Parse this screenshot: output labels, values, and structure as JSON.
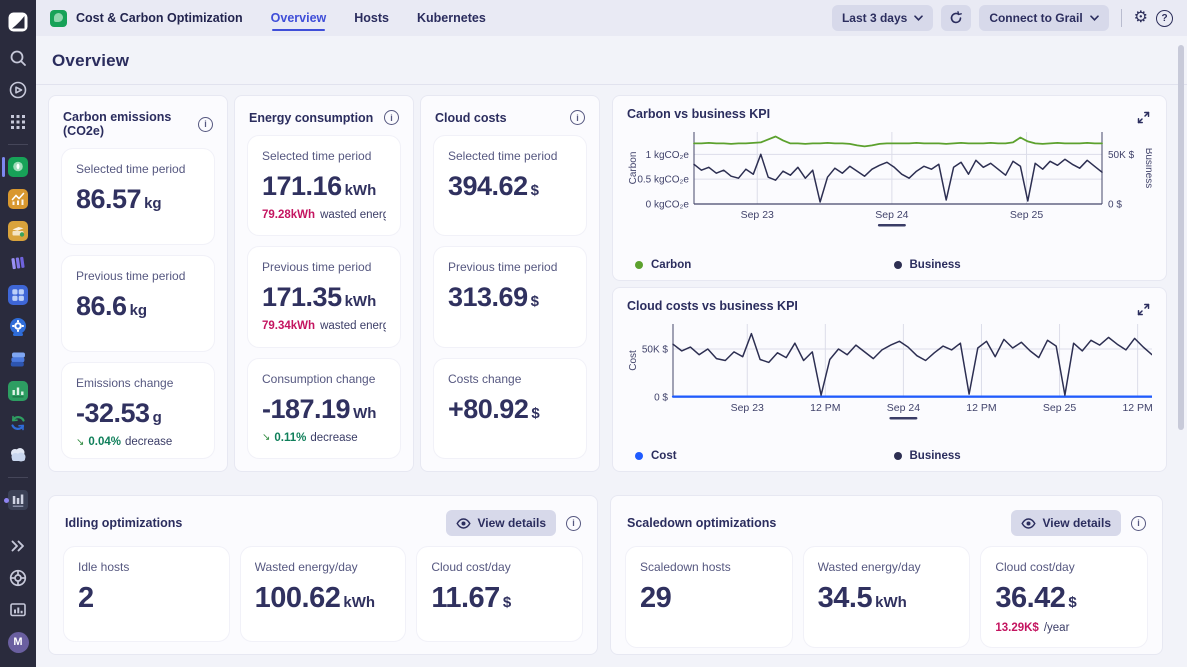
{
  "icons": {
    "info_glyph": "i",
    "help_glyph": "?",
    "gear_glyph": "⚙"
  },
  "colors": {
    "accent_blue": "#3f4ed8",
    "carbon_green": "#5ca12e",
    "cost_blue": "#1f5bff",
    "business_navy": "#2d2f52",
    "alert_red": "#c41560",
    "trend_green": "#0f7f5a"
  },
  "sidebar": {
    "avatar_label": "M",
    "icon_names": [
      "dynatrace-logo",
      "search",
      "launchpad",
      "apps-grid",
      "carbon-app",
      "dashboards-app",
      "automation-app",
      "cloud-layers-app",
      "kubernetes-app",
      "gear-app",
      "stack-app",
      "metrics-app",
      "sync-app",
      "clouds-app",
      "host-monitoring-app",
      "collapse-chevrons",
      "help-lifebuoy",
      "usage-chart",
      "user-avatar"
    ]
  },
  "topbar": {
    "app_title": "Cost & Carbon Optimization",
    "tabs": [
      {
        "label": "Overview",
        "active": true
      },
      {
        "label": "Hosts",
        "active": false
      },
      {
        "label": "Kubernetes",
        "active": false
      }
    ],
    "time_range_label": "Last 3 days",
    "connect_label": "Connect to Grail"
  },
  "page": {
    "title": "Overview"
  },
  "metric_columns": [
    {
      "title": "Carbon emissions (CO2e)",
      "tiles": [
        {
          "label": "Selected time period",
          "value": "86.57",
          "unit": "kg"
        },
        {
          "label": "Previous time period",
          "value": "86.6",
          "unit": "kg"
        },
        {
          "label": "Emissions change",
          "value": "-32.53",
          "unit": "g",
          "trend_glyph": "↘",
          "trend_value": "0.04%",
          "trend_text": "decrease"
        }
      ]
    },
    {
      "title": "Energy consumption",
      "tiles": [
        {
          "label": "Selected time period",
          "value": "171.16",
          "unit": "kWh",
          "sub_value": "79.28kWh",
          "sub_text": "wasted energy"
        },
        {
          "label": "Previous time period",
          "value": "171.35",
          "unit": "kWh",
          "sub_value": "79.34kWh",
          "sub_text": "wasted energy"
        },
        {
          "label": "Consumption change",
          "value": "-187.19",
          "unit": "Wh",
          "trend_glyph": "↘",
          "trend_value": "0.11%",
          "trend_text": "decrease"
        }
      ]
    },
    {
      "title": "Cloud costs",
      "tiles": [
        {
          "label": "Selected time period",
          "value": "394.62",
          "unit": "$"
        },
        {
          "label": "Previous time period",
          "value": "313.69",
          "unit": "$"
        },
        {
          "label": "Costs change",
          "value": "+80.92",
          "unit": "$"
        }
      ]
    }
  ],
  "optimizations": [
    {
      "title": "Idling optimizations",
      "view_details_label": "View details",
      "tiles": [
        {
          "label": "Idle hosts",
          "value": "2",
          "unit": ""
        },
        {
          "label": "Wasted energy/day",
          "value": "100.62",
          "unit": "kWh"
        },
        {
          "label": "Cloud cost/day",
          "value": "11.67",
          "unit": "$"
        }
      ]
    },
    {
      "title": "Scaledown optimizations",
      "view_details_label": "View details",
      "tiles": [
        {
          "label": "Scaledown hosts",
          "value": "29",
          "unit": ""
        },
        {
          "label": "Wasted energy/day",
          "value": "34.5",
          "unit": "kWh"
        },
        {
          "label": "Cloud cost/day",
          "value": "36.42",
          "unit": "$",
          "sub_value": "13.29K$",
          "sub_text": "/year"
        }
      ]
    }
  ],
  "chart_data": [
    {
      "type": "line",
      "title": "Carbon vs business KPI",
      "ylabel_left": "Carbon",
      "ylabel_right": "Business",
      "ylim_left": [
        0,
        1.45
      ],
      "ylim_right": [
        0,
        72.5
      ],
      "yticks_left": [
        {
          "value": 0,
          "label": "0 kgCO₂e"
        },
        {
          "value": 0.5,
          "label": "0.5 kgCO₂e"
        },
        {
          "value": 1,
          "label": "1 kgCO₂e"
        }
      ],
      "yticks_right": [
        {
          "value": 0,
          "label": "0 $"
        },
        {
          "value": 50,
          "label": "50K $"
        }
      ],
      "xticks": [
        {
          "pos": 0.155,
          "label": "Sep 23"
        },
        {
          "pos": 0.485,
          "label": "Sep 24",
          "selected": true
        },
        {
          "pos": 0.815,
          "label": "Sep 25"
        }
      ],
      "series": [
        {
          "name": "Carbon",
          "color": "#5ca12e",
          "axis": "left",
          "width": 1.8,
          "values": [
            1.22,
            1.22,
            1.23,
            1.22,
            1.22,
            1.21,
            1.22,
            1.22,
            1.23,
            1.24,
            1.3,
            1.36,
            1.28,
            1.22,
            1.22,
            1.21,
            1.22,
            1.22,
            1.23,
            1.22,
            1.22,
            1.21,
            1.18,
            1.16,
            1.18,
            1.21,
            1.22,
            1.22,
            1.22,
            1.22,
            1.23,
            1.22,
            1.22,
            1.22,
            1.21,
            1.22,
            1.23,
            1.22,
            1.22,
            1.22,
            1.23,
            1.22,
            1.22,
            1.24,
            1.34,
            1.26,
            1.22,
            1.21,
            1.22,
            1.23,
            1.22,
            1.22,
            1.22,
            1.23,
            1.22,
            1.22
          ]
        },
        {
          "name": "Business",
          "color": "#2d2f52",
          "axis": "right",
          "width": 1.5,
          "values": [
            40,
            34,
            37,
            31,
            34,
            28,
            26,
            35,
            30,
            50,
            27,
            24,
            33,
            29,
            37,
            26,
            34,
            2,
            27,
            36,
            31,
            38,
            33,
            28,
            35,
            39,
            42,
            37,
            30,
            26,
            33,
            38,
            35,
            40,
            4,
            37,
            42,
            30,
            44,
            37,
            41,
            35,
            29,
            43,
            38,
            3,
            41,
            35,
            43,
            39,
            45,
            40,
            36,
            44,
            38,
            32
          ]
        }
      ]
    },
    {
      "type": "line",
      "title": "Cloud costs vs business KPI",
      "ylabel_left": "Cost",
      "ylim_left": [
        0,
        76
      ],
      "yticks_left": [
        {
          "value": 0,
          "label": "0 $"
        },
        {
          "value": 50,
          "label": "50K $"
        }
      ],
      "xticks": [
        {
          "pos": 0.155,
          "label": "Sep 23"
        },
        {
          "pos": 0.318,
          "label": "12 PM"
        },
        {
          "pos": 0.481,
          "label": "Sep 24",
          "selected": true
        },
        {
          "pos": 0.644,
          "label": "12 PM"
        },
        {
          "pos": 0.807,
          "label": "Sep 25"
        },
        {
          "pos": 0.97,
          "label": "12 PM"
        }
      ],
      "series": [
        {
          "name": "Cost",
          "color": "#1f5bff",
          "axis": "left",
          "width": 2.2,
          "values": [
            0.4,
            0.4,
            0.4,
            0.4,
            0.4,
            0.4,
            0.4,
            0.4
          ]
        },
        {
          "name": "Business",
          "color": "#2d2f52",
          "axis": "left",
          "width": 1.5,
          "values": [
            55,
            48,
            52,
            44,
            50,
            40,
            38,
            47,
            42,
            66,
            39,
            36,
            46,
            41,
            56,
            38,
            47,
            2,
            39,
            50,
            44,
            54,
            47,
            40,
            49,
            54,
            58,
            52,
            43,
            38,
            46,
            53,
            49,
            56,
            3,
            51,
            58,
            42,
            60,
            51,
            57,
            48,
            41,
            59,
            53,
            2,
            56,
            48,
            59,
            54,
            62,
            55,
            49,
            61,
            52,
            44
          ]
        }
      ]
    }
  ]
}
